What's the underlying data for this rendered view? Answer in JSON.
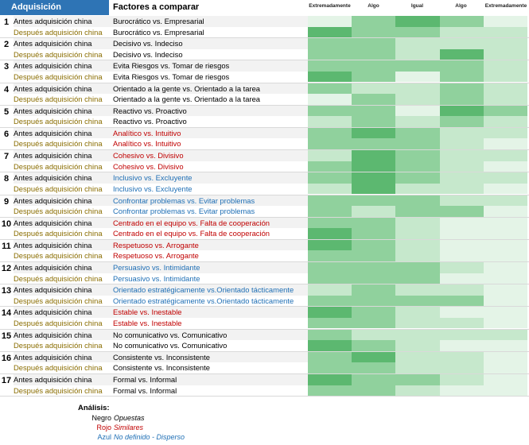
{
  "header": {
    "acquisition": "Adquisición",
    "factors": "Factores a comparar",
    "columns": [
      "Extremadamente",
      "Algo",
      "Igual",
      "Algo",
      "Extremadamente"
    ]
  },
  "labels": {
    "before": "Antes adquisición china",
    "after": "Después adquisición china"
  },
  "colors": {
    "header_blue": "#2e74b5",
    "heat_strong": "#5cb870",
    "heat_medium": "#90d19d",
    "heat_light": "#c6e8cc",
    "heat_pale": "#e4f4e7",
    "heat_none": "#f7fbf8",
    "text_red": "#c00000",
    "text_blue": "#1f6fb5"
  },
  "rows": [
    {
      "num": "1",
      "factor": "Burocrático vs. Empresarial",
      "color": "black",
      "before": [
        4,
        2,
        1,
        2,
        4
      ],
      "after": [
        1,
        2,
        2,
        3,
        3
      ]
    },
    {
      "num": "2",
      "factor": "Decisivo vs. Indeciso",
      "color": "black",
      "before": [
        2,
        2,
        3,
        3,
        3
      ],
      "after": [
        2,
        2,
        3,
        1,
        3
      ]
    },
    {
      "num": "3",
      "factor": "Evita Riesgos vs. Tomar de riesgos",
      "color": "black",
      "before": [
        2,
        2,
        2,
        2,
        3
      ],
      "after": [
        1,
        2,
        4,
        2,
        3
      ]
    },
    {
      "num": "4",
      "factor": "Orientado a la gente vs. Orientado a la tarea",
      "color": "black",
      "before": [
        2,
        3,
        3,
        2,
        3
      ],
      "after": [
        4,
        2,
        3,
        2,
        3
      ]
    },
    {
      "num": "5",
      "factor": "Reactivo vs. Proactivo",
      "color": "black",
      "before": [
        2,
        2,
        4,
        1,
        2
      ],
      "after": [
        3,
        2,
        3,
        2,
        3
      ]
    },
    {
      "num": "6",
      "factor": "Analítico vs. Intuitivo",
      "color": "red",
      "before": [
        2,
        1,
        2,
        3,
        3
      ],
      "after": [
        2,
        2,
        2,
        3,
        4
      ]
    },
    {
      "num": "7",
      "factor": "Cohesivo vs. Divisivo",
      "color": "red",
      "before": [
        3,
        1,
        2,
        3,
        3
      ],
      "after": [
        2,
        1,
        2,
        3,
        4
      ]
    },
    {
      "num": "8",
      "factor": "Inclusivo vs. Excluyente",
      "color": "blue",
      "before": [
        2,
        1,
        2,
        3,
        3
      ],
      "after": [
        3,
        1,
        3,
        3,
        4
      ]
    },
    {
      "num": "9",
      "factor": "Confrontar problemas vs. Evitar problemas",
      "color": "blue",
      "before": [
        2,
        2,
        2,
        3,
        3
      ],
      "after": [
        2,
        3,
        2,
        2,
        4
      ]
    },
    {
      "num": "10",
      "factor": "Centrado en el equipo vs. Falta de cooperación",
      "color": "red",
      "before": [
        2,
        2,
        3,
        4,
        4
      ],
      "after": [
        1,
        2,
        3,
        4,
        4
      ]
    },
    {
      "num": "11",
      "factor": "Respetuoso vs. Arrogante",
      "color": "red",
      "before": [
        1,
        2,
        3,
        4,
        4
      ],
      "after": [
        2,
        2,
        3,
        4,
        4
      ]
    },
    {
      "num": "12",
      "factor": "Persuasivo vs. Intimidante",
      "color": "blue",
      "before": [
        2,
        2,
        2,
        3,
        4
      ],
      "after": [
        2,
        2,
        2,
        4,
        4
      ]
    },
    {
      "num": "13",
      "factor": "Orientado estratégicamente vs.Orientado tácticamente",
      "color": "blue",
      "before": [
        3,
        2,
        3,
        3,
        4
      ],
      "after": [
        2,
        2,
        2,
        2,
        4
      ]
    },
    {
      "num": "14",
      "factor": "Estable vs. Inestable",
      "color": "red",
      "before": [
        1,
        2,
        3,
        4,
        4
      ],
      "after": [
        2,
        2,
        3,
        3,
        4
      ]
    },
    {
      "num": "15",
      "factor": "No comunicativo vs. Comunicativo",
      "color": "black",
      "before": [
        2,
        3,
        3,
        3,
        3
      ],
      "after": [
        1,
        2,
        3,
        4,
        4
      ]
    },
    {
      "num": "16",
      "factor": "Consistente vs. Inconsistente",
      "color": "black",
      "before": [
        2,
        1,
        3,
        3,
        4
      ],
      "after": [
        2,
        2,
        3,
        3,
        4
      ]
    },
    {
      "num": "17",
      "factor": "Formal vs. Informal",
      "color": "black",
      "before": [
        1,
        2,
        2,
        3,
        4
      ],
      "after": [
        2,
        2,
        3,
        4,
        4
      ]
    }
  ],
  "analysis": {
    "title": "Análisis:",
    "legend": [
      {
        "key": "Negro",
        "value": "Opuestas",
        "color": "black"
      },
      {
        "key": "Rojo",
        "value": "Similares",
        "color": "red"
      },
      {
        "key": "Azul",
        "value": "No definido - Disperso",
        "color": "blue"
      }
    ]
  }
}
